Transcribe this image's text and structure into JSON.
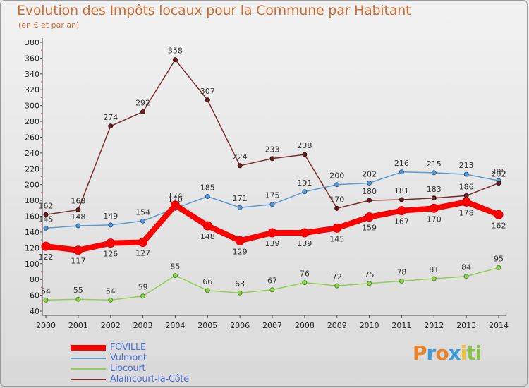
{
  "title": "Evolution des Impôts locaux pour la Commune par Habitant",
  "subtitle": "(en € et par an)",
  "chart_data": {
    "type": "line",
    "x": [
      "2000",
      "2001",
      "2002",
      "2003",
      "2004",
      "2005",
      "2006",
      "2007",
      "2008",
      "2009",
      "2010",
      "2011",
      "2012",
      "2013",
      "2014"
    ],
    "ylim": [
      40,
      380
    ],
    "yticks": [
      40,
      60,
      80,
      100,
      120,
      140,
      160,
      180,
      200,
      220,
      240,
      260,
      280,
      300,
      320,
      340,
      360,
      380
    ],
    "grid": false,
    "legend_position": "bottom-left",
    "series": [
      {
        "name": "FOVILLE",
        "color": "#ff0000",
        "values": [
          122,
          117,
          126,
          127,
          174,
          148,
          129,
          139,
          139,
          145,
          159,
          167,
          170,
          178,
          162
        ],
        "labels": [
          "122",
          "117",
          "126",
          "127",
          "174",
          "148",
          "129",
          "139",
          "139",
          "145",
          "159",
          "167",
          "170",
          "178",
          "162"
        ]
      },
      {
        "name": "Vulmont",
        "color": "#5b9bd5",
        "values": [
          145,
          148,
          149,
          154,
          170,
          185,
          171,
          175,
          191,
          200,
          202,
          216,
          215,
          213,
          205
        ],
        "labels": [
          "145",
          "148",
          "149",
          "154",
          "170",
          "185",
          "171",
          "175",
          "191",
          "200",
          "202",
          "216",
          "215",
          "213",
          "205"
        ]
      },
      {
        "name": "Liocourt",
        "color": "#8fd14f",
        "values": [
          54,
          55,
          54,
          59,
          85,
          66,
          63,
          67,
          76,
          72,
          75,
          78,
          81,
          84,
          95
        ],
        "labels": [
          "54",
          "55",
          "54",
          "59",
          "85",
          "66",
          "63",
          "67",
          "76",
          "72",
          "75",
          "78",
          "81",
          "84",
          "95"
        ]
      },
      {
        "name": "Alaincourt-la-Côte",
        "color": "#7b2c2c",
        "values": [
          162,
          168,
          274,
          292,
          358,
          307,
          224,
          233,
          238,
          170,
          180,
          181,
          183,
          186,
          202
        ],
        "labels": [
          "162",
          "168",
          "274",
          "292",
          "358",
          "307",
          "224",
          "233",
          "238",
          "170",
          "180",
          "181",
          "183",
          "186",
          "202"
        ]
      }
    ]
  },
  "logo": {
    "letters": [
      "P",
      "r",
      "o",
      "x",
      "i",
      "t",
      "i"
    ],
    "colors": [
      "#e8822d",
      "#3b9ad9",
      "#e8822d",
      "#3b9ad9",
      "#f2c230",
      "#8bc34a",
      "#8bc34a"
    ]
  }
}
